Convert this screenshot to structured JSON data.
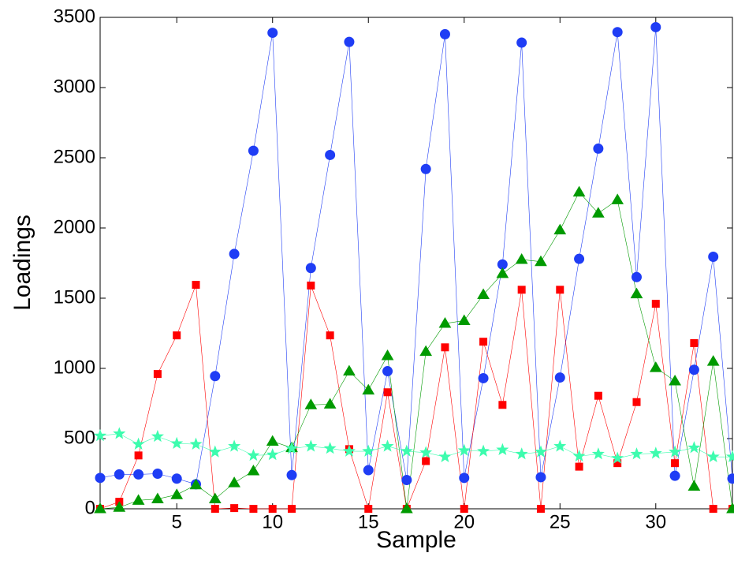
{
  "chart_data": {
    "type": "line",
    "xlabel": "Sample",
    "ylabel": "Loadings",
    "x": [
      1,
      2,
      3,
      4,
      5,
      6,
      7,
      8,
      9,
      10,
      11,
      12,
      13,
      14,
      15,
      16,
      17,
      18,
      19,
      20,
      21,
      22,
      23,
      24,
      25,
      26,
      27,
      28,
      29,
      30,
      31,
      32,
      33,
      34
    ],
    "xlim": [
      1,
      34
    ],
    "xticks": [
      5,
      10,
      15,
      20,
      25,
      30
    ],
    "ylim": [
      0,
      3500
    ],
    "yticks": [
      0,
      500,
      1000,
      1500,
      2000,
      2500,
      3000,
      3500
    ],
    "grid": false,
    "series": [
      {
        "color": "#1f3df5",
        "marker": "circle",
        "values": [
          220,
          245,
          245,
          250,
          215,
          175,
          945,
          1815,
          2550,
          3390,
          240,
          1715,
          2520,
          3325,
          275,
          980,
          205,
          2420,
          3380,
          220,
          930,
          1740,
          3320,
          225,
          935,
          1780,
          2565,
          3395,
          1650,
          3430,
          235,
          990,
          1795,
          215
        ]
      },
      {
        "color": "#ff0000",
        "marker": "square",
        "values": [
          0,
          50,
          380,
          960,
          1235,
          1595,
          0,
          5,
          0,
          0,
          0,
          1590,
          1235,
          425,
          0,
          830,
          0,
          340,
          1150,
          0,
          1190,
          740,
          1560,
          0,
          1560,
          300,
          805,
          325,
          760,
          1460,
          325,
          1180,
          0,
          0
        ]
      },
      {
        "color": "#009a00",
        "marker": "triangle",
        "values": [
          0,
          10,
          60,
          70,
          100,
          170,
          70,
          185,
          270,
          480,
          435,
          740,
          745,
          980,
          845,
          1090,
          0,
          1120,
          1320,
          1340,
          1525,
          1675,
          1775,
          1760,
          1985,
          2255,
          2105,
          2200,
          1530,
          1005,
          910,
          160,
          1050,
          0
        ]
      },
      {
        "color": "#3dfcae",
        "marker": "star",
        "values": [
          520,
          535,
          460,
          515,
          465,
          460,
          405,
          445,
          380,
          385,
          430,
          445,
          430,
          410,
          410,
          445,
          410,
          400,
          370,
          415,
          410,
          420,
          390,
          405,
          445,
          375,
          390,
          360,
          390,
          395,
          405,
          435,
          370,
          370
        ]
      }
    ]
  }
}
